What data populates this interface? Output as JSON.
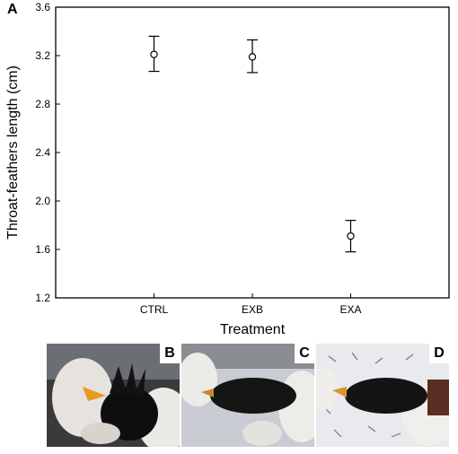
{
  "figure": {
    "panel_a_label": "A",
    "photos": [
      {
        "label": "B",
        "subject": "bird held in gloved hands, throat feathers raised, yellow beak"
      },
      {
        "label": "C",
        "subject": "bird held lengthwise by gloved hands, head to the left"
      },
      {
        "label": "D",
        "subject": "bird held lengthwise on white sheet with scattered feathers"
      }
    ]
  },
  "chart_data": {
    "type": "scatter",
    "title": "",
    "xlabel": "Treatment",
    "ylabel": "Throat-feathers length (cm)",
    "categories": [
      "CTRL",
      "EXB",
      "EXA"
    ],
    "series": [
      {
        "values": [
          3.21,
          3.19,
          1.71
        ],
        "error_low": [
          3.07,
          3.06,
          1.58
        ],
        "error_high": [
          3.36,
          3.33,
          1.84
        ]
      }
    ],
    "ylim": [
      1.2,
      3.6
    ],
    "yticks": [
      "1.2",
      "1.6",
      "2.0",
      "2.4",
      "2.8",
      "3.2",
      "3.6"
    ],
    "grid": false,
    "marker": "open-circle",
    "colors": {
      "marker": "#000000",
      "axis": "#000000"
    }
  }
}
